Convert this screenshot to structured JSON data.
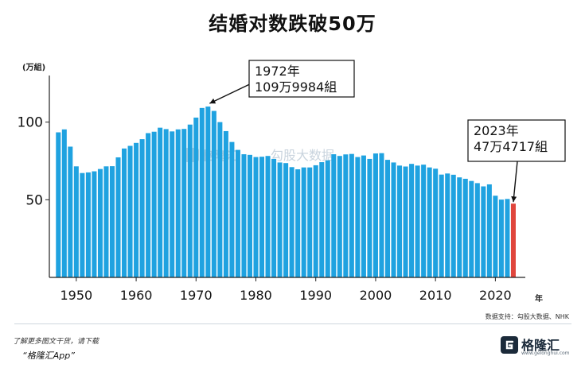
{
  "title": "结婚对数跌破50万",
  "source_note": "数据支持：勾股大数据、NHK",
  "footer": {
    "tip": "了解更多图文干货，请下载",
    "app": "“格隆汇App”"
  },
  "logo": {
    "name": "格隆汇",
    "url": "www.gelonghui.com"
  },
  "watermark": {
    "brand": "格隆汇",
    "text": "勾股大数据"
  },
  "colors": {
    "bar": "#1fa2e0",
    "highlight": "#e0463d",
    "axis": "#222222"
  },
  "chart_data": {
    "type": "bar",
    "title": "结婚对数跌破50万",
    "ylabel": "(万組)",
    "xlabel": "年",
    "ylim": [
      0,
      130
    ],
    "xlim": [
      1945.5,
      2025
    ],
    "xticks": [
      1950,
      1960,
      1970,
      1980,
      1990,
      2000,
      2010,
      2020
    ],
    "yticks": [
      50,
      100
    ],
    "grid": false,
    "x": [
      1947,
      1948,
      1949,
      1950,
      1951,
      1952,
      1953,
      1954,
      1955,
      1956,
      1957,
      1958,
      1959,
      1960,
      1961,
      1962,
      1963,
      1964,
      1965,
      1966,
      1967,
      1968,
      1969,
      1970,
      1971,
      1972,
      1973,
      1974,
      1975,
      1976,
      1977,
      1978,
      1979,
      1980,
      1981,
      1982,
      1983,
      1984,
      1985,
      1986,
      1987,
      1988,
      1989,
      1990,
      1991,
      1992,
      1993,
      1994,
      1995,
      1996,
      1997,
      1998,
      1999,
      2000,
      2001,
      2002,
      2003,
      2004,
      2005,
      2006,
      2007,
      2008,
      2009,
      2010,
      2011,
      2012,
      2013,
      2014,
      2015,
      2016,
      2017,
      2018,
      2019,
      2020,
      2021,
      2022,
      2023
    ],
    "values": [
      93.4,
      95.3,
      84.2,
      71.5,
      67.2,
      67.6,
      68.3,
      69.8,
      71.5,
      71.6,
      77.3,
      83.0,
      84.7,
      86.6,
      89.0,
      92.9,
      93.8,
      96.4,
      95.5,
      94.0,
      95.3,
      95.6,
      98.4,
      102.9,
      109.1,
      110.0,
      107.2,
      100.0,
      94.2,
      87.2,
      82.1,
      79.3,
      78.9,
      77.5,
      77.7,
      78.2,
      76.3,
      74.0,
      73.6,
      71.0,
      69.6,
      70.8,
      70.8,
      72.2,
      74.2,
      75.4,
      79.3,
      78.2,
      79.2,
      79.5,
      77.5,
      78.5,
      76.3,
      79.8,
      80.0,
      75.7,
      74.0,
      72.0,
      71.4,
      73.1,
      72.0,
      72.6,
      70.8,
      70.0,
      66.2,
      66.9,
      66.1,
      64.4,
      63.5,
      62.1,
      60.7,
      58.6,
      59.9,
      52.6,
      50.1,
      50.5,
      47.5
    ],
    "highlight_index": 76,
    "annotations": [
      {
        "line1": "1972年",
        "line2": "109万9984組",
        "x": 1972,
        "y": 110.0
      },
      {
        "line1": "2023年",
        "line2": "47万4717組",
        "x": 2023,
        "y": 47.5
      }
    ]
  }
}
